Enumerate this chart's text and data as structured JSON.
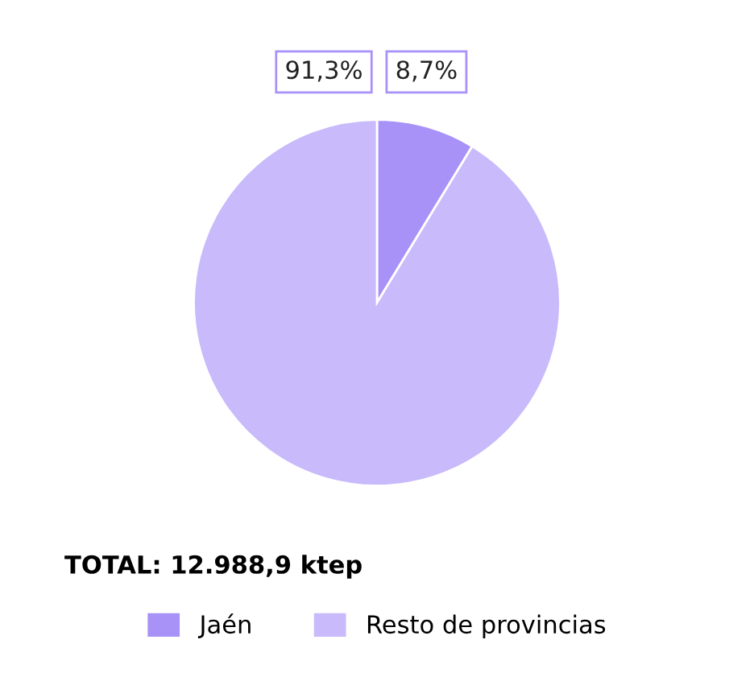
{
  "chart_data": {
    "type": "pie",
    "categories": [
      "Jaén",
      "Resto de provincias"
    ],
    "values": [
      8.7,
      91.3
    ],
    "colors": [
      "#a891f7",
      "#c8bafb"
    ],
    "value_labels": [
      "8,7%",
      "91,3%"
    ],
    "annotations": [
      "TOTAL: 12.988,9 ktep"
    ],
    "legend": "bottom"
  }
}
